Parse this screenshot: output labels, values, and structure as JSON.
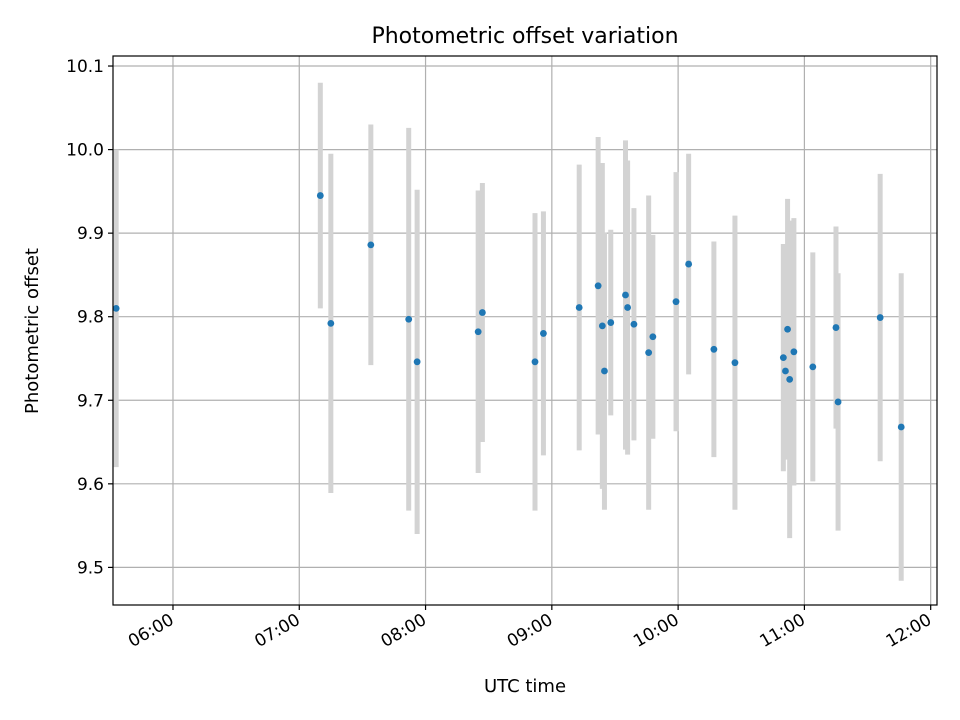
{
  "chart_data": {
    "type": "scatter",
    "title": "Photometric offset variation",
    "xlabel": "UTC time",
    "ylabel": "Photometric offset",
    "xlim": [
      "05:33",
      "12:03"
    ],
    "ylim": [
      9.455,
      10.112
    ],
    "grid": true,
    "x_ticks": [
      "06:00",
      "07:00",
      "08:00",
      "09:00",
      "10:00",
      "11:00",
      "12:00"
    ],
    "y_ticks": [
      "9.5",
      "9.6",
      "9.7",
      "9.8",
      "9.9",
      "10.0",
      "10.1"
    ],
    "colors": {
      "point": "#1f77b4",
      "errorbar": "#d3d3d3",
      "grid": "#b0b0b0"
    },
    "points": [
      {
        "x": "05:33",
        "y": 9.81,
        "err": 0.19
      },
      {
        "x": "07:10",
        "y": 9.945,
        "err": 0.135
      },
      {
        "x": "07:15",
        "y": 9.792,
        "err": 0.203
      },
      {
        "x": "07:34",
        "y": 9.886,
        "err": 0.144
      },
      {
        "x": "07:52",
        "y": 9.797,
        "err": 0.229
      },
      {
        "x": "07:56",
        "y": 9.746,
        "err": 0.206
      },
      {
        "x": "08:25",
        "y": 9.782,
        "err": 0.169
      },
      {
        "x": "08:27",
        "y": 9.805,
        "err": 0.155
      },
      {
        "x": "08:52",
        "y": 9.746,
        "err": 0.178
      },
      {
        "x": "08:56",
        "y": 9.78,
        "err": 0.146
      },
      {
        "x": "09:13",
        "y": 9.811,
        "err": 0.171
      },
      {
        "x": "09:22",
        "y": 9.837,
        "err": 0.178
      },
      {
        "x": "09:24",
        "y": 9.789,
        "err": 0.195
      },
      {
        "x": "09:25",
        "y": 9.735,
        "err": 0.166
      },
      {
        "x": "09:28",
        "y": 9.793,
        "err": 0.111
      },
      {
        "x": "09:35",
        "y": 9.826,
        "err": 0.185
      },
      {
        "x": "09:36",
        "y": 9.811,
        "err": 0.176
      },
      {
        "x": "09:39",
        "y": 9.791,
        "err": 0.139
      },
      {
        "x": "09:46",
        "y": 9.757,
        "err": 0.188
      },
      {
        "x": "09:48",
        "y": 9.776,
        "err": 0.122
      },
      {
        "x": "09:59",
        "y": 9.818,
        "err": 0.155
      },
      {
        "x": "10:05",
        "y": 9.863,
        "err": 0.132
      },
      {
        "x": "10:17",
        "y": 9.761,
        "err": 0.129
      },
      {
        "x": "10:27",
        "y": 9.745,
        "err": 0.176
      },
      {
        "x": "10:50",
        "y": 9.751,
        "err": 0.136
      },
      {
        "x": "10:51",
        "y": 9.735,
        "err": 0.103
      },
      {
        "x": "10:52",
        "y": 9.785,
        "err": 0.156
      },
      {
        "x": "10:53",
        "y": 9.725,
        "err": 0.19
      },
      {
        "x": "10:55",
        "y": 9.758,
        "err": 0.16
      },
      {
        "x": "11:04",
        "y": 9.74,
        "err": 0.137
      },
      {
        "x": "11:15",
        "y": 9.787,
        "err": 0.121
      },
      {
        "x": "11:16",
        "y": 9.698,
        "err": 0.154
      },
      {
        "x": "11:36",
        "y": 9.799,
        "err": 0.172
      },
      {
        "x": "11:46",
        "y": 9.668,
        "err": 0.184
      }
    ]
  }
}
